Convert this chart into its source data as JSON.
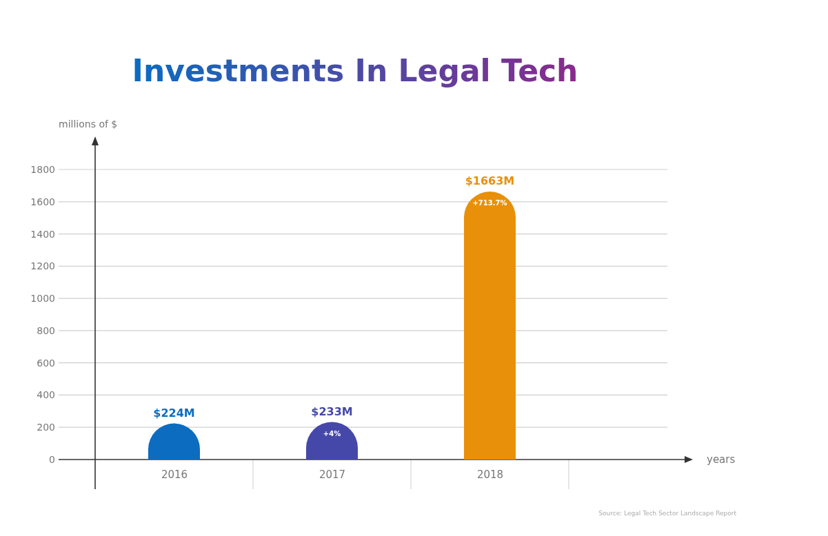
{
  "chart_data": {
    "type": "bar",
    "title": "Investments In Legal Tech",
    "ylabel": "millions of $",
    "xlabel": "years",
    "categories": [
      "2016",
      "2017",
      "2018"
    ],
    "values": [
      224,
      233,
      1663
    ],
    "colors": [
      "#0b6cc0",
      "#4548a8",
      "#e8900a"
    ],
    "value_labels": [
      "$224M",
      "$233M",
      "$1663M"
    ],
    "ylim": [
      0,
      1800
    ],
    "yticks": [
      0,
      200,
      400,
      600,
      800,
      1000,
      1200,
      1400,
      1600,
      1800
    ],
    "grid": "y",
    "annotations": [
      {
        "text": "+4%",
        "x": "2017",
        "y": 233
      },
      {
        "text": "+713.7%",
        "x": "2018",
        "y": 1663
      },
      "Source: Legal Tech Sector Landscape Report"
    ]
  }
}
